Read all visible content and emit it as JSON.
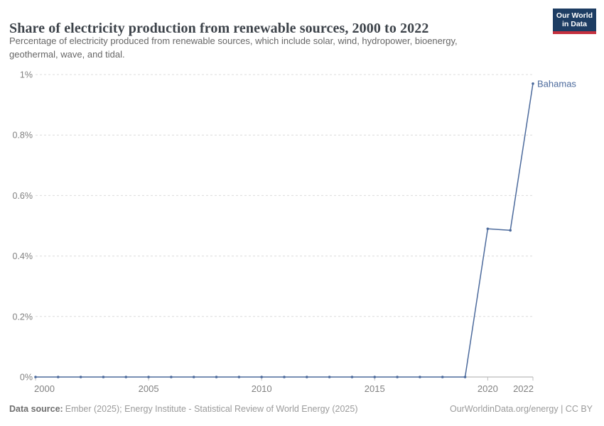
{
  "header": {
    "title": "Share of electricity production from renewable sources, 2000 to 2022",
    "subtitle_lines": [
      "Percentage of electricity produced from renewable sources, which include solar, wind, hydropower, bioenergy,",
      "geothermal, wave, and tidal."
    ],
    "logo": {
      "line1": "Our World",
      "line2": "in Data"
    }
  },
  "chart_data": {
    "type": "line",
    "title": "Share of electricity production from renewable sources, 2000 to 2022",
    "x": [
      2000,
      2001,
      2002,
      2003,
      2004,
      2005,
      2006,
      2007,
      2008,
      2009,
      2010,
      2011,
      2012,
      2013,
      2014,
      2015,
      2016,
      2017,
      2018,
      2019,
      2020,
      2021,
      2022
    ],
    "series": [
      {
        "name": "Bahamas",
        "values": [
          0,
          0,
          0,
          0,
          0,
          0,
          0,
          0,
          0,
          0,
          0,
          0,
          0,
          0,
          0,
          0,
          0,
          0,
          0,
          0,
          0.49,
          0.485,
          0.97
        ]
      }
    ],
    "xlim": [
      2000,
      2022
    ],
    "ylim": [
      0,
      1
    ],
    "yticks": [
      {
        "value": 0,
        "label": "0%"
      },
      {
        "value": 0.2,
        "label": "0.2%"
      },
      {
        "value": 0.4,
        "label": "0.4%"
      },
      {
        "value": 0.6,
        "label": "0.6%"
      },
      {
        "value": 0.8,
        "label": "0.8%"
      },
      {
        "value": 1,
        "label": "1%"
      }
    ],
    "xticks": [
      {
        "value": 2000,
        "label": "2000"
      },
      {
        "value": 2005,
        "label": "2005"
      },
      {
        "value": 2010,
        "label": "2010"
      },
      {
        "value": 2015,
        "label": "2015"
      },
      {
        "value": 2020,
        "label": "2020"
      },
      {
        "value": 2022,
        "label": "2022"
      }
    ],
    "grid": "horizontal-dashed",
    "legend_position": "end-of-line-label",
    "end_label": "Bahamas"
  },
  "footer": {
    "source_label": "Data source:",
    "source_text": "Ember (2025); Energy Institute - Statistical Review of World Energy (2025)",
    "attribution": "OurWorldinData.org/energy | CC BY"
  },
  "colors": {
    "line": "#4c6a9c",
    "grid": "#dcdcdc",
    "axis": "#a8a8a8",
    "tick": "#bcbcbc",
    "tick_label": "#818181",
    "title": "#3d434a",
    "subtitle": "#666666",
    "logo_bg": "#1d3d63",
    "logo_accent": "#c5303e"
  }
}
